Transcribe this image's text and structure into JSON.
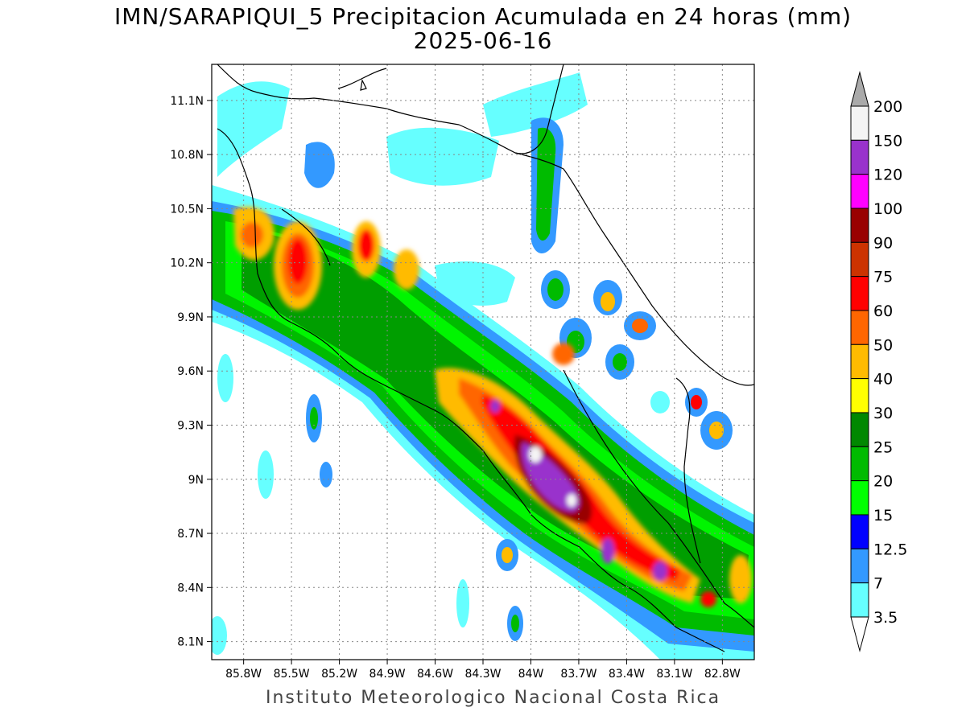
{
  "title": "IMN/SARAPIQUI_5 Precipitacion Acumulada en 24 horas (mm)",
  "date": "2025-06-16",
  "footer": "Instituto Meteorologico Nacional Costa Rica",
  "map": {
    "lon_range": [
      -86.0,
      -82.6
    ],
    "lat_range": [
      8.0,
      11.3
    ],
    "lon_ticks": [
      {
        "value": -85.8,
        "label": "85.8W"
      },
      {
        "value": -85.5,
        "label": "85.5W"
      },
      {
        "value": -85.2,
        "label": "85.2W"
      },
      {
        "value": -84.9,
        "label": "84.9W"
      },
      {
        "value": -84.6,
        "label": "84.6W"
      },
      {
        "value": -84.3,
        "label": "84.3W"
      },
      {
        "value": -84.0,
        "label": "84W"
      },
      {
        "value": -83.7,
        "label": "83.7W"
      },
      {
        "value": -83.4,
        "label": "83.4W"
      },
      {
        "value": -83.1,
        "label": "83.1W"
      },
      {
        "value": -82.8,
        "label": "82.8W"
      }
    ],
    "lat_ticks": [
      {
        "value": 8.1,
        "label": "8.1N"
      },
      {
        "value": 8.4,
        "label": "8.4N"
      },
      {
        "value": 8.7,
        "label": "8.7N"
      },
      {
        "value": 9.0,
        "label": "9N"
      },
      {
        "value": 9.3,
        "label": "9.3N"
      },
      {
        "value": 9.6,
        "label": "9.6N"
      },
      {
        "value": 9.9,
        "label": "9.9N"
      },
      {
        "value": 10.2,
        "label": "10.2N"
      },
      {
        "value": 10.5,
        "label": "10.5N"
      },
      {
        "value": 10.8,
        "label": "10.8N"
      },
      {
        "value": 11.1,
        "label": "11.1N"
      }
    ],
    "grid": true
  },
  "colorbar": {
    "labels": [
      "200",
      "150",
      "120",
      "100",
      "90",
      "75",
      "60",
      "50",
      "40",
      "30",
      "25",
      "20",
      "15",
      "12.5",
      "7",
      "3.5"
    ],
    "colors": [
      "#f4f4f4",
      "#9932cc",
      "#ff00ff",
      "#990000",
      "#cc3300",
      "#ff0000",
      "#ff6600",
      "#ffbb00",
      "#ffff00",
      "#008800",
      "#00bb00",
      "#00ff00",
      "#0000ff",
      "#3399ff",
      "#66ffff"
    ],
    "top_triangle_color": "#aaaaaa",
    "bottom_triangle_color": "#ffffff"
  }
}
